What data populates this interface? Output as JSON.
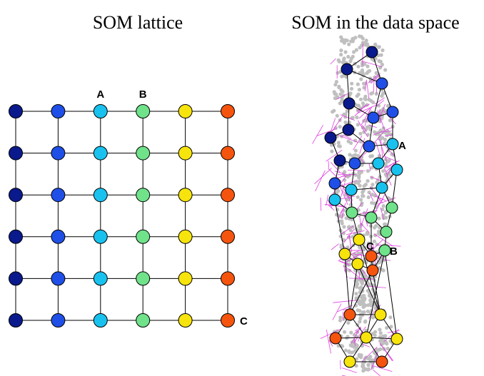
{
  "titles": {
    "left": "SOM lattice",
    "right": "SOM in the data space"
  },
  "lattice": {
    "rows": 6,
    "cols": 6,
    "column_colors": [
      "#0a1a8c",
      "#1f4fe6",
      "#19c2ee",
      "#6fe28a",
      "#f6e40c",
      "#f5540e"
    ],
    "labels": [
      {
        "text": "A",
        "col": 2,
        "row": 0,
        "pos": "above"
      },
      {
        "text": "B",
        "col": 3,
        "row": 0,
        "pos": "above"
      },
      {
        "text": "C",
        "col": 5,
        "row": 5,
        "pos": "right"
      }
    ]
  },
  "data_space": {
    "labels": [
      {
        "text": "A"
      },
      {
        "text": "B"
      },
      {
        "text": "C"
      }
    ]
  }
}
